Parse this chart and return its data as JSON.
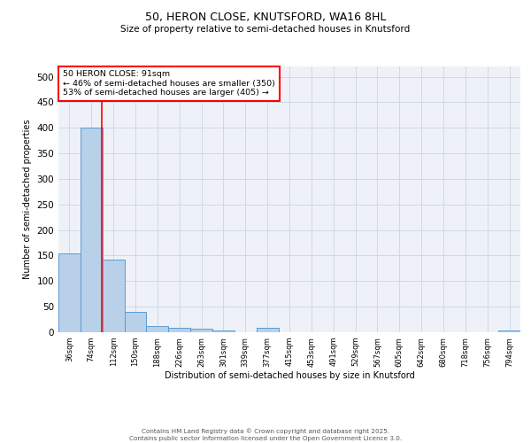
{
  "title1": "50, HERON CLOSE, KNUTSFORD, WA16 8HL",
  "title2": "Size of property relative to semi-detached houses in Knutsford",
  "xlabel": "Distribution of semi-detached houses by size in Knutsford",
  "ylabel": "Number of semi-detached properties",
  "categories": [
    "36sqm",
    "74sqm",
    "112sqm",
    "150sqm",
    "188sqm",
    "226sqm",
    "263sqm",
    "301sqm",
    "339sqm",
    "377sqm",
    "415sqm",
    "453sqm",
    "491sqm",
    "529sqm",
    "567sqm",
    "605sqm",
    "642sqm",
    "680sqm",
    "718sqm",
    "756sqm",
    "794sqm"
  ],
  "values": [
    155,
    400,
    143,
    40,
    12,
    8,
    7,
    3,
    0,
    8,
    0,
    0,
    0,
    0,
    0,
    0,
    0,
    0,
    0,
    0,
    4
  ],
  "bar_color": "#b8d0e8",
  "bar_edge_color": "#5b9bd5",
  "red_line_x": 1.47,
  "annotation_title": "50 HERON CLOSE: 91sqm",
  "annotation_line1": "← 46% of semi-detached houses are smaller (350)",
  "annotation_line2": "53% of semi-detached houses are larger (405) →",
  "ylim": [
    0,
    520
  ],
  "yticks": [
    0,
    50,
    100,
    150,
    200,
    250,
    300,
    350,
    400,
    450,
    500
  ],
  "grid_color": "#d0d8e8",
  "footer": "Contains HM Land Registry data © Crown copyright and database right 2025.\nContains public sector information licensed under the Open Government Licence 3.0.",
  "bg_color": "#eef2f8"
}
